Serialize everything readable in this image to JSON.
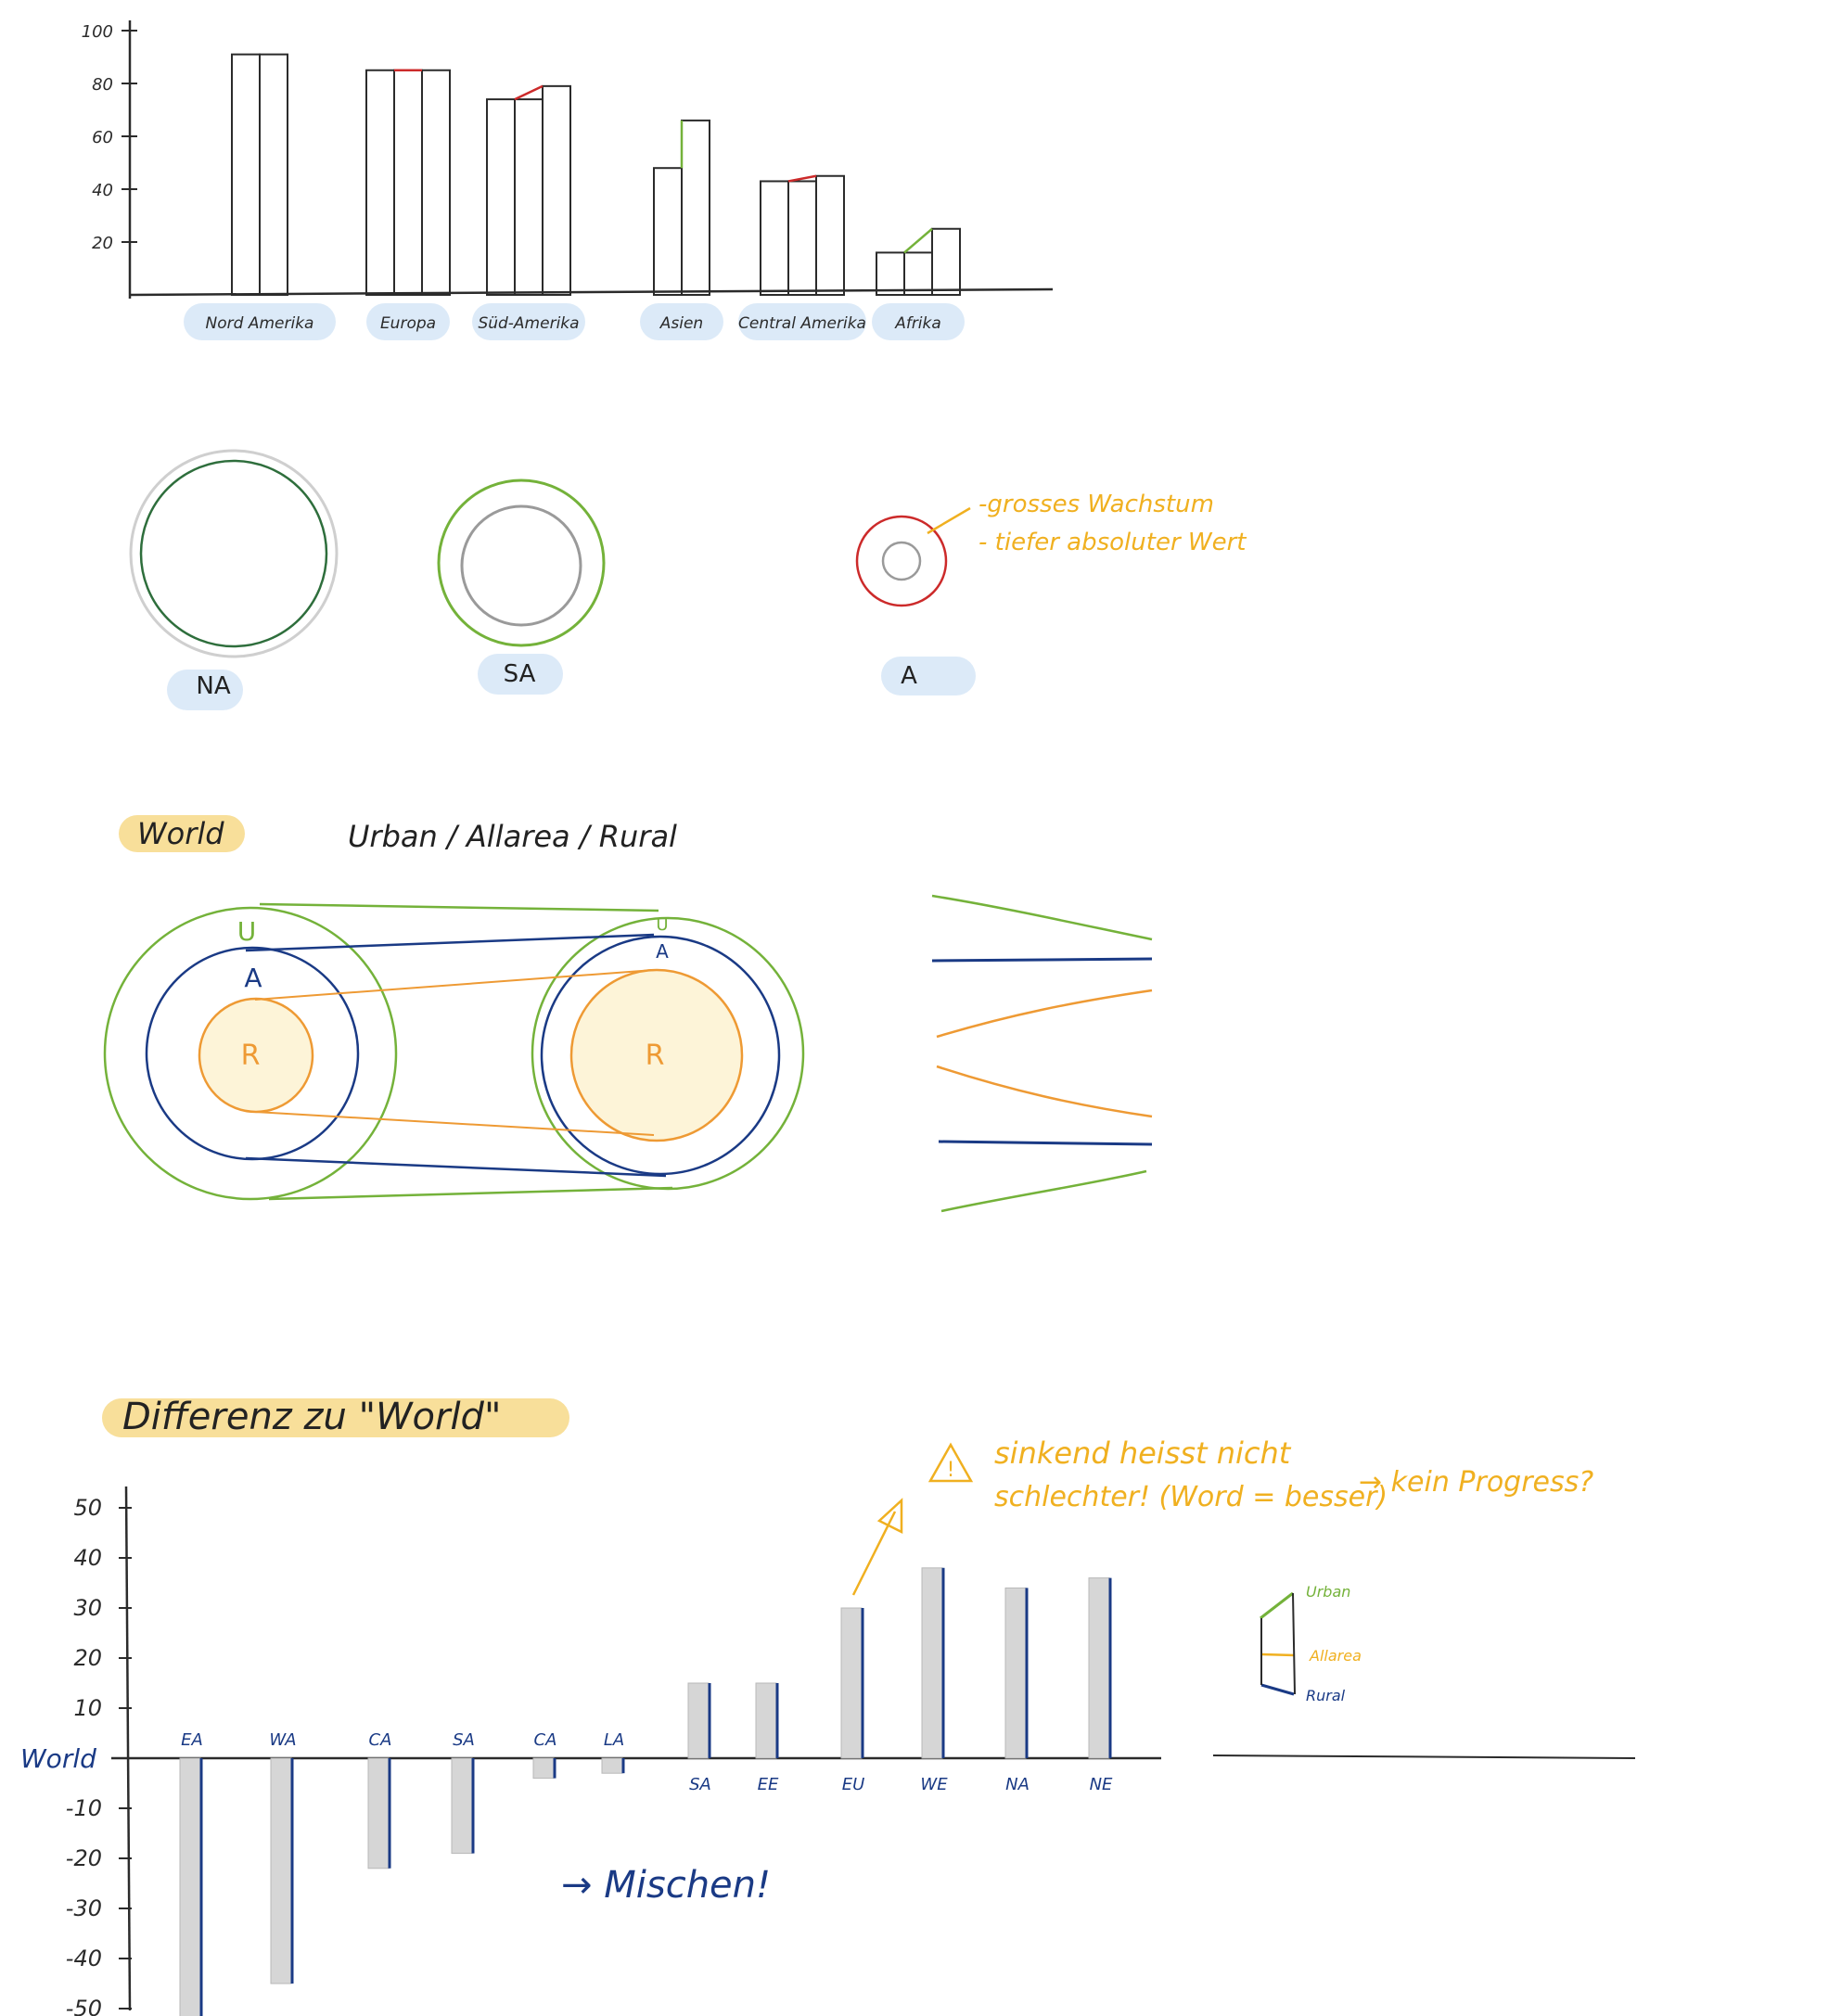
{
  "colors": {
    "ink": "#2b2b2b",
    "green": "#74b23a",
    "navy": "#1a3a85",
    "orange": "#ee9a34",
    "red": "#cc2a2a",
    "gray": "#9a9a9a",
    "yellow_ink": "#f0b020",
    "highlight_blue": "#dceaf8",
    "highlight_yellow": "#f8df9a",
    "rural_fill": "#fdf4d8"
  },
  "chart_data": [
    {
      "type": "bar",
      "ylim": [
        0,
        100
      ],
      "y_ticks": [
        "100",
        "80",
        "60",
        "40",
        "20"
      ],
      "categories": [
        "Nord Amerika",
        "Europa",
        "Süd-Amerika",
        "Asien",
        "Central Amerika",
        "Afrika"
      ],
      "groups": [
        {
          "category": "Nord Amerika",
          "bars": [
            91,
            91
          ],
          "change": "stable"
        },
        {
          "category": "Europa",
          "bars": [
            85,
            85,
            85
          ],
          "change": "stable"
        },
        {
          "category": "Süd-Amerika",
          "bars": [
            74,
            74,
            79
          ],
          "change": "slight-increase"
        },
        {
          "category": "Asien",
          "bars": [
            48,
            66
          ],
          "change": "increase"
        },
        {
          "category": "Central Amerika",
          "bars": [
            43,
            43,
            45
          ],
          "change": "slight-increase"
        },
        {
          "category": "Afrika",
          "bars": [
            16,
            16,
            25
          ],
          "change": "increase"
        }
      ]
    },
    {
      "type": "bar",
      "title": "Differenz zu \"World\"",
      "baseline_label": "World",
      "ylim": [
        -50,
        50
      ],
      "y_ticks": [
        "50",
        "40",
        "30",
        "20",
        "10",
        "-10",
        "-20",
        "-30",
        "-40",
        "-50"
      ],
      "categories": [
        "EA",
        "WA",
        "CA",
        "SA",
        "CA",
        "LA",
        "SA",
        "EE",
        "EU",
        "WE",
        "NA",
        "NE"
      ],
      "values": [
        -52,
        -45,
        -22,
        -19,
        -4,
        -3,
        15,
        15,
        30,
        38,
        34,
        36
      ]
    }
  ],
  "circles": {
    "labels": [
      "NA",
      "SA",
      "A"
    ],
    "notes": [
      "-grosses Wachstum",
      "- tiefer absoluter Wert"
    ]
  },
  "world": {
    "label": "World",
    "subtitle": "Urban / Allarea / Rural",
    "rings_left": [
      "U",
      "A",
      "R"
    ],
    "rings_right": [
      "U",
      "A",
      "R"
    ]
  },
  "diff": {
    "warning_line1": "sinkend heisst nicht",
    "warning_line2": "schlechter! (Word = besser)",
    "warning_arrow": "→ kein Progress?",
    "mix_note": "→ Mischen!",
    "legend": [
      "Urban",
      "Allarea",
      "Rural"
    ]
  }
}
